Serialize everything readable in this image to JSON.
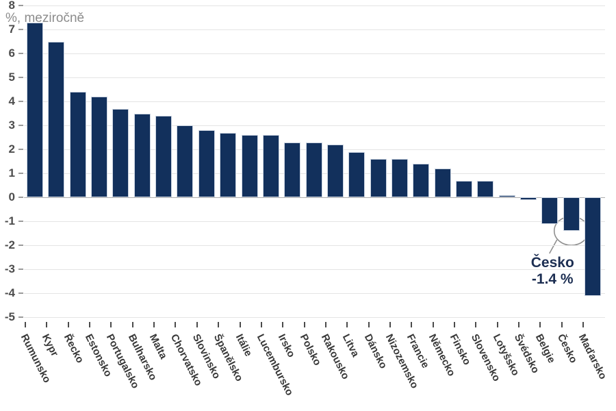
{
  "chart_data": {
    "type": "bar",
    "title": "",
    "ylabel": "%, meziročně",
    "xlabel": "",
    "ylim": [
      -5,
      8
    ],
    "yticks": [
      8,
      7,
      6,
      5,
      4,
      3,
      2,
      1,
      0,
      -1,
      -2,
      -3,
      -4,
      -5
    ],
    "grid": true,
    "bar_color": "#12305C",
    "categories": [
      "Rumunsko",
      "Kypr",
      "Řecko",
      "Estonsko",
      "Portugalsko",
      "Bulharsko",
      "Malta",
      "Chorvatsko",
      "Slovinsko",
      "Španělsko",
      "Itálie",
      "Lucembursko",
      "Irsko",
      "Polsko",
      "Rakousko",
      "Litva",
      "Dánsko",
      "Nizozemsko",
      "Francie",
      "Německo",
      "Finsko",
      "Slovensko",
      "Lotyšsko",
      "Švédsko",
      "Belgie",
      "Česko",
      "Maďarsko"
    ],
    "values": [
      7.3,
      6.5,
      4.4,
      4.2,
      3.7,
      3.5,
      3.4,
      3.0,
      2.8,
      2.7,
      2.6,
      2.6,
      2.3,
      2.3,
      2.2,
      1.9,
      1.6,
      1.6,
      1.4,
      1.2,
      0.7,
      0.7,
      0.1,
      -0.1,
      -1.1,
      -1.4,
      -4.1
    ],
    "annotation": {
      "label": "Česko",
      "value_label": "-1.4 %",
      "target_category": "Česko"
    }
  }
}
